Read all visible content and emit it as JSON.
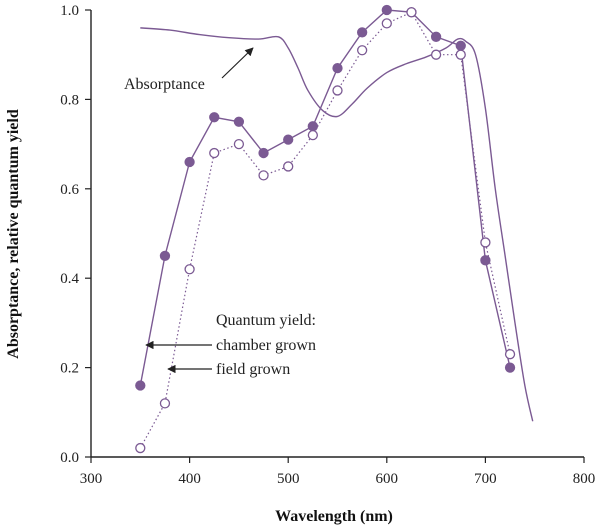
{
  "chart_data": {
    "type": "line",
    "title": "",
    "xlabel": "Wavelength (nm)",
    "ylabel": "Absorptance, relative quantum yield",
    "xlim": [
      300,
      800
    ],
    "ylim": [
      0,
      1.0
    ],
    "x_ticks": [
      300,
      400,
      500,
      600,
      700,
      800
    ],
    "y_ticks": [
      0.0,
      0.2,
      0.4,
      0.6,
      0.8,
      1.0
    ],
    "x_tick_labels": [
      "300",
      "400",
      "500",
      "600",
      "700",
      "800"
    ],
    "y_tick_labels": [
      "0.0",
      "0.2",
      "0.4",
      "0.6",
      "0.8",
      "1.0"
    ],
    "grid": false,
    "colors": {
      "series": "#7b5a93",
      "axis": "#222222"
    },
    "series": [
      {
        "name": "Absorptance",
        "style": "solid-line",
        "points": [
          [
            350,
            0.96
          ],
          [
            380,
            0.955
          ],
          [
            410,
            0.945
          ],
          [
            440,
            0.938
          ],
          [
            470,
            0.935
          ],
          [
            490,
            0.94
          ],
          [
            500,
            0.915
          ],
          [
            510,
            0.87
          ],
          [
            520,
            0.82
          ],
          [
            535,
            0.775
          ],
          [
            550,
            0.762
          ],
          [
            565,
            0.79
          ],
          [
            580,
            0.825
          ],
          [
            600,
            0.86
          ],
          [
            620,
            0.88
          ],
          [
            640,
            0.895
          ],
          [
            660,
            0.915
          ],
          [
            672,
            0.935
          ],
          [
            680,
            0.93
          ],
          [
            690,
            0.9
          ],
          [
            700,
            0.78
          ],
          [
            710,
            0.6
          ],
          [
            720,
            0.45
          ],
          [
            730,
            0.3
          ],
          [
            740,
            0.16
          ],
          [
            748,
            0.08
          ]
        ]
      },
      {
        "name": "chamber grown",
        "style": "solid-line-filled-circles",
        "points": [
          [
            350,
            0.16
          ],
          [
            375,
            0.45
          ],
          [
            400,
            0.66
          ],
          [
            425,
            0.76
          ],
          [
            450,
            0.75
          ],
          [
            475,
            0.68
          ],
          [
            500,
            0.71
          ],
          [
            525,
            0.74
          ],
          [
            550,
            0.87
          ],
          [
            575,
            0.95
          ],
          [
            600,
            1.0
          ],
          [
            625,
            0.995
          ],
          [
            650,
            0.94
          ],
          [
            675,
            0.92
          ],
          [
            700,
            0.44
          ],
          [
            725,
            0.2
          ]
        ]
      },
      {
        "name": "field grown",
        "style": "dotted-line-open-circles",
        "points": [
          [
            350,
            0.02
          ],
          [
            375,
            0.12
          ],
          [
            400,
            0.42
          ],
          [
            425,
            0.68
          ],
          [
            450,
            0.7
          ],
          [
            475,
            0.63
          ],
          [
            500,
            0.65
          ],
          [
            525,
            0.72
          ],
          [
            550,
            0.82
          ],
          [
            575,
            0.91
          ],
          [
            600,
            0.97
          ],
          [
            625,
            0.995
          ],
          [
            650,
            0.9
          ],
          [
            675,
            0.9
          ],
          [
            700,
            0.48
          ],
          [
            725,
            0.23
          ]
        ]
      }
    ],
    "annotations": [
      {
        "text": "Absorptance",
        "points_to_series": "Absorptance"
      },
      {
        "text": "Quantum yield:",
        "points_to_series": ""
      },
      {
        "text": "chamber grown",
        "points_to_series": "chamber grown"
      },
      {
        "text": "field grown",
        "points_to_series": "field grown"
      }
    ]
  }
}
